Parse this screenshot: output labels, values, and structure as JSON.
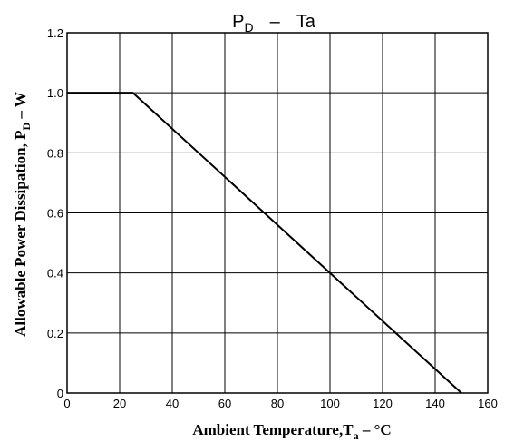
{
  "chart_data": {
    "type": "line",
    "title": {
      "main": "P",
      "main_sub": "D",
      "separator": "–",
      "tail": "Ta"
    },
    "xlabel": {
      "main": "Ambient Temperature,T",
      "sub": "a",
      "tail": " – °C"
    },
    "ylabel": {
      "main": "Allowable Power Dissipation, P",
      "sub": "D",
      "tail": " – W"
    },
    "xlim": [
      0,
      160
    ],
    "ylim": [
      0,
      1.2
    ],
    "x_ticks": [
      "0",
      "20",
      "40",
      "60",
      "80",
      "100",
      "120",
      "140",
      "160"
    ],
    "y_ticks": [
      "0",
      "0.2",
      "0.4",
      "0.6",
      "0.8",
      "1.0",
      "1.2"
    ],
    "x_tick_values": [
      0,
      20,
      40,
      60,
      80,
      100,
      120,
      140,
      160
    ],
    "y_tick_values": [
      0,
      0.2,
      0.4,
      0.6,
      0.8,
      1.0,
      1.2
    ],
    "grid": true,
    "series": [
      {
        "x": [
          0,
          25,
          150
        ],
        "y": [
          1.0,
          1.0,
          0
        ]
      }
    ],
    "color": "#000000"
  }
}
